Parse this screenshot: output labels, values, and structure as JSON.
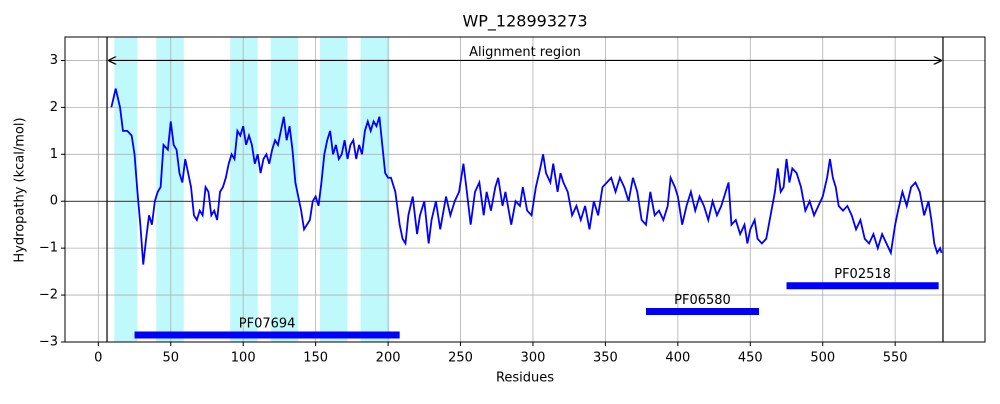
{
  "chart_data": {
    "type": "line",
    "title": "WP_128993273",
    "xlabel": "Residues",
    "ylabel": "Hydropathy (kcal/mol)",
    "color": "#0000ff",
    "x": [
      9,
      12,
      15,
      17,
      20,
      23,
      25,
      27,
      29,
      31,
      33,
      35,
      37,
      39,
      41,
      43,
      45,
      48,
      50,
      52,
      54,
      56,
      58,
      60,
      62,
      64,
      66,
      68,
      70,
      72,
      74,
      76,
      78,
      80,
      82,
      84,
      86,
      88,
      90,
      92,
      94,
      96,
      98,
      100,
      102,
      104,
      106,
      108,
      110,
      112,
      114,
      116,
      118,
      120,
      122,
      124,
      126,
      128,
      130,
      132,
      134,
      136,
      138,
      140,
      142,
      144,
      146,
      148,
      150,
      152,
      154,
      156,
      158,
      160,
      162,
      164,
      166,
      168,
      170,
      172,
      174,
      176,
      178,
      180,
      182,
      184,
      186,
      188,
      190,
      192,
      194,
      196,
      198,
      200,
      202,
      205,
      208,
      210,
      212,
      214,
      217,
      220,
      222,
      225,
      228,
      230,
      233,
      236,
      240,
      243,
      246,
      249,
      252,
      254,
      257,
      260,
      263,
      266,
      268,
      271,
      274,
      276,
      279,
      281,
      285,
      288,
      291,
      293,
      296,
      299,
      302,
      305,
      307,
      309,
      312,
      314,
      317,
      319,
      321,
      324,
      327,
      330,
      333,
      336,
      339,
      342,
      345,
      348,
      351,
      354,
      357,
      360,
      363,
      366,
      369,
      372,
      375,
      378,
      381,
      384,
      387,
      390,
      393,
      395,
      398,
      400,
      403,
      406,
      409,
      412,
      415,
      418,
      421,
      424,
      427,
      430,
      433,
      435,
      437,
      440,
      443,
      446,
      448,
      450,
      453,
      455,
      458,
      461,
      464,
      467,
      469,
      471,
      473,
      475,
      477,
      479,
      482,
      485,
      488,
      491,
      494,
      497,
      500,
      503,
      505,
      507,
      509,
      511,
      514,
      517,
      520,
      523,
      526,
      529,
      532,
      535,
      538,
      541,
      544,
      547,
      550,
      552,
      555,
      558,
      561,
      564,
      567,
      570,
      573,
      575,
      577,
      579,
      581,
      582
    ],
    "values": [
      2.0,
      2.4,
      2.0,
      1.5,
      1.5,
      1.4,
      1.0,
      0.2,
      -0.5,
      -1.35,
      -0.8,
      -0.3,
      -0.5,
      0,
      0.2,
      0.3,
      1.2,
      1.1,
      1.7,
      1.2,
      1.1,
      0.6,
      0.4,
      0.9,
      0.6,
      0.3,
      -0.3,
      -0.4,
      -0.2,
      -0.3,
      0.3,
      0.2,
      -0.3,
      -0.2,
      -0.4,
      0.2,
      0.3,
      0.5,
      0.8,
      1.0,
      0.9,
      1.5,
      1.4,
      1.6,
      1.2,
      1.4,
      1.2,
      0.8,
      1.0,
      0.6,
      0.9,
      1.0,
      0.8,
      1.1,
      1.3,
      1.2,
      1.5,
      1.8,
      1.3,
      1.6,
      1.1,
      0.4,
      0.1,
      -0.2,
      -0.6,
      -0.5,
      -0.4,
      0,
      0.1,
      -0.1,
      0.4,
      1.0,
      1.3,
      1.5,
      1.0,
      1.2,
      0.9,
      1.0,
      1.3,
      0.9,
      1.2,
      1.3,
      0.9,
      1.2,
      1.0,
      1.5,
      1.7,
      1.5,
      1.7,
      1.6,
      1.8,
      1.2,
      0.6,
      0.5,
      0.5,
      0.2,
      -0.5,
      -0.8,
      -0.9,
      -0.3,
      0.1,
      -0.7,
      -0.3,
      0,
      -0.9,
      -0.4,
      0.0,
      -0.6,
      0.1,
      -0.3,
      0,
      0.2,
      0.8,
      0.3,
      -0.5,
      0.2,
      0.4,
      -0.3,
      0.2,
      -0.2,
      0.3,
      0.5,
      -0.1,
      0.2,
      -0.5,
      0,
      -0.1,
      0.3,
      -0.2,
      -0.3,
      0.3,
      0.7,
      1.0,
      0.6,
      0.4,
      0.8,
      0.2,
      0.6,
      0.4,
      0.2,
      -0.3,
      -0.1,
      -0.4,
      -0.1,
      -0.6,
      0.0,
      -0.3,
      0.3,
      0.4,
      0.5,
      0.2,
      0.5,
      0.3,
      0.0,
      0.5,
      0.2,
      -0.4,
      -0.5,
      0.2,
      -0.3,
      -0.2,
      -0.4,
      -0.1,
      0.5,
      0.3,
      0.1,
      -0.5,
      -0.1,
      0.2,
      -0.2,
      0.1,
      -0.1,
      -0.4,
      0,
      -0.3,
      -0.1,
      0.2,
      0.4,
      -0.5,
      -0.4,
      -0.7,
      -0.5,
      -0.9,
      -0.6,
      -0.4,
      -0.8,
      -0.9,
      -0.8,
      -0.3,
      0.2,
      0.7,
      0.2,
      0.3,
      0.9,
      0.4,
      0.7,
      0.6,
      0.3,
      -0.2,
      0.0,
      -0.3,
      -0.1,
      0.1,
      0.5,
      0.9,
      0.5,
      0.3,
      -0.1,
      -0.2,
      -0.1,
      -0.3,
      -0.6,
      -0.4,
      -0.8,
      -0.9,
      -0.7,
      -1.0,
      -0.7,
      -0.9,
      -1.1,
      -0.5,
      -0.2,
      0.2,
      -0.1,
      0.3,
      0.4,
      0.2,
      -0.3,
      0.0,
      -0.4,
      -0.9,
      -1.1,
      -1.0,
      -1.1
    ],
    "xlim": [
      -23,
      612
    ],
    "ylim": [
      -3,
      3.5
    ],
    "xticks": [
      0,
      50,
      100,
      150,
      200,
      250,
      300,
      350,
      400,
      450,
      500,
      550
    ],
    "yticks": [
      {
        "value": -3,
        "label": "−3"
      },
      {
        "value": -2,
        "label": "−2"
      },
      {
        "value": -1,
        "label": "−1"
      },
      0,
      1,
      2,
      3
    ],
    "grid": true,
    "hline": 0,
    "band_color": "#bff9fb",
    "bands": [
      [
        11,
        27
      ],
      [
        40,
        59
      ],
      [
        91,
        110
      ],
      [
        119,
        138
      ],
      [
        153,
        172
      ],
      [
        181,
        201
      ]
    ],
    "alignment_region": {
      "label": "Alignment region",
      "start": 6,
      "end": 583,
      "y": 3
    },
    "domains": [
      {
        "label": "PF07694",
        "start": 25,
        "end": 208,
        "y": -2.85
      },
      {
        "label": "PF06580",
        "start": 378,
        "end": 456,
        "y": -2.35
      },
      {
        "label": "PF02518",
        "start": 475,
        "end": 580,
        "y": -1.8
      }
    ]
  }
}
